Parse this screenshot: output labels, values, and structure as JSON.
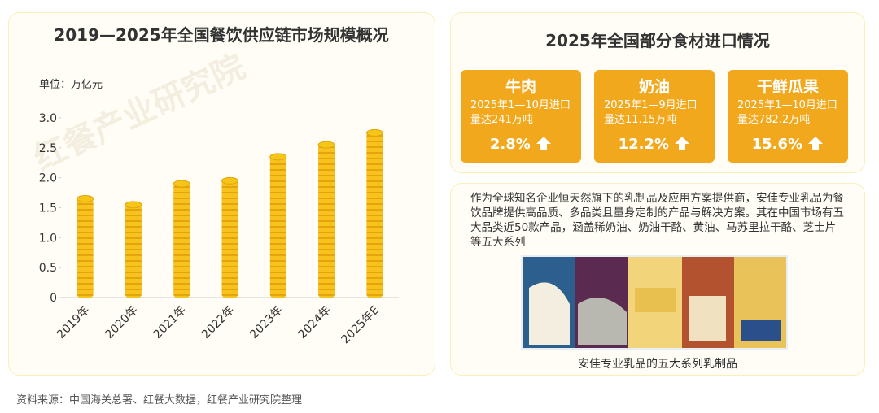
{
  "chart_data": {
    "type": "bar",
    "title": "2019—2025年全国餐饮供应链市场规模概况",
    "y_label": "单位：万亿元",
    "categories": [
      "2019年",
      "2020年",
      "2021年",
      "2022年",
      "2023年",
      "2024年",
      "2025年E"
    ],
    "values": [
      1.65,
      1.55,
      1.9,
      1.95,
      2.35,
      2.55,
      2.75
    ],
    "color": "#f5c518",
    "ylim": [
      0,
      3
    ],
    "yticks": [
      0,
      0.5,
      {
        "value": 1,
        "label": "1.0"
      },
      1.5,
      {
        "value": 2,
        "label": "2.0"
      },
      2.5,
      {
        "value": 3,
        "label": "3.0"
      }
    ]
  },
  "imports": {
    "title": "2025年全国部分食材进口情况",
    "items": [
      {
        "name": "牛肉",
        "desc": "2025年1—10月进口量达241万吨",
        "change": "2.8%"
      },
      {
        "name": "奶油",
        "desc": "2025年1—9月进口量达11.15万吨",
        "change": "12.2%"
      },
      {
        "name": "干鲜瓜果",
        "desc": "2025年1—10月进口量达782.2万吨",
        "change": "15.6%"
      }
    ]
  },
  "description": {
    "text": "作为全球知名企业恒天然旗下的乳制品及应用方案提供商，安佳专业乳品为餐饮品牌提供高品质、多品类且量身定制的产品与解决方案。其在中国市场有五大品类近50款产品，涵盖稀奶油、奶油干酪、黄油、马苏里拉干酪、芝士片等五大系列",
    "caption": "安佳专业乳品的五大系列乳制品"
  },
  "watermark": "红餐产业研究院",
  "source": "资料来源：中国海关总署、红餐大数据，红餐产业研究院整理"
}
